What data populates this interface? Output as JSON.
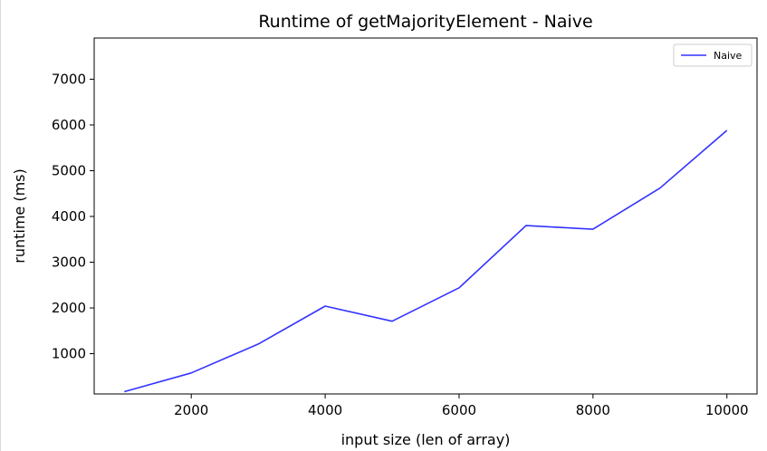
{
  "chart_data": {
    "type": "line",
    "title": "Runtime of getMajorityElement - Naive",
    "xlabel": "input size (len of array)",
    "ylabel": "runtime (ms)",
    "xlim": [
      550,
      10450
    ],
    "ylim": [
      120,
      7900
    ],
    "xticks": [
      2000,
      4000,
      6000,
      8000,
      10000
    ],
    "xtick_labels": [
      "2000",
      "4000",
      "6000",
      "8000",
      "10000"
    ],
    "yticks": [
      1000,
      2000,
      3000,
      4000,
      5000,
      6000,
      7000
    ],
    "ytick_labels": [
      "1000",
      "2000",
      "3000",
      "4000",
      "5000",
      "6000",
      "7000"
    ],
    "grid": false,
    "legend_position": "top-right",
    "series": [
      {
        "name": "Naive",
        "color": "#3333ff",
        "x": [
          1000,
          2000,
          3000,
          4000,
          5000,
          6000,
          7000,
          8000,
          9000,
          10000
        ],
        "y": [
          170,
          580,
          1210,
          2040,
          1710,
          2440,
          3800,
          3720,
          4620,
          5880
        ]
      }
    ]
  }
}
